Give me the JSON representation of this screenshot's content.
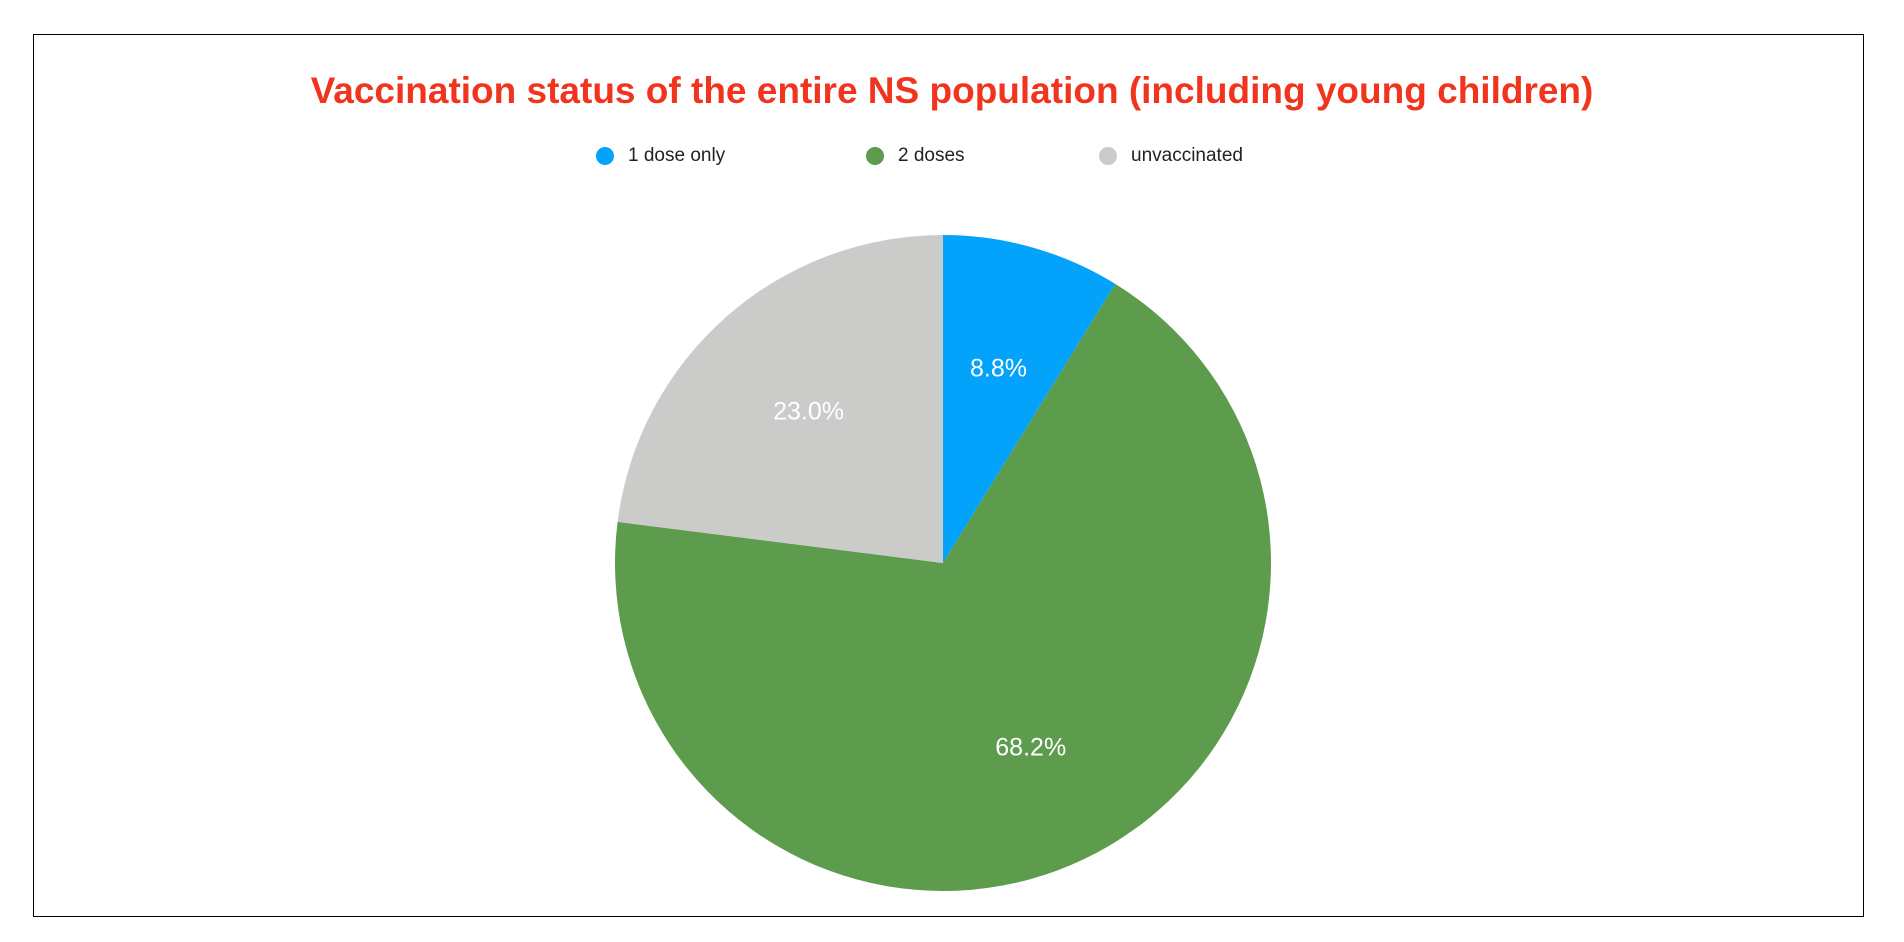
{
  "chart_data": {
    "type": "pie",
    "title": "Vaccination status of the entire NS population (including young children)",
    "legend_position": "top",
    "series": [
      {
        "name": "1 dose only",
        "value": 8.8,
        "label": "8.8%",
        "color": "#03a3fb"
      },
      {
        "name": "2 doses",
        "value": 68.2,
        "label": "68.2%",
        "color": "#5e9c4d"
      },
      {
        "name": "unvaccinated",
        "value": 23.0,
        "label": "23.0%",
        "color": "#cbcbca"
      }
    ]
  }
}
